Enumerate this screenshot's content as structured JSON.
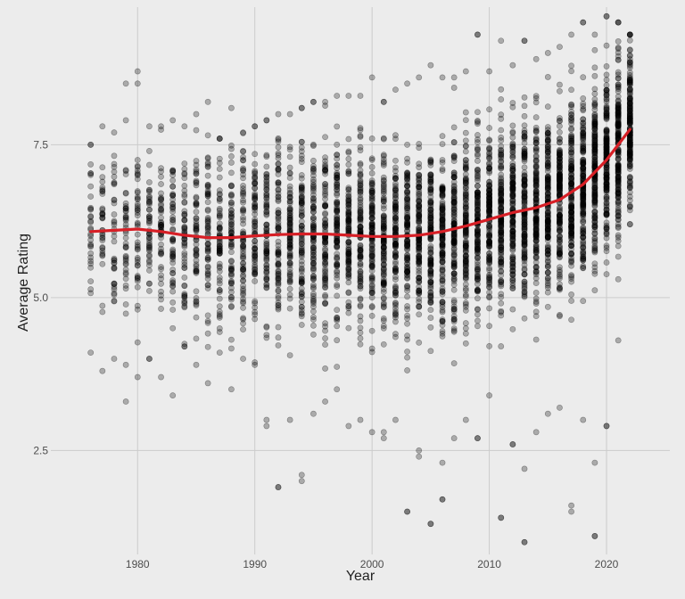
{
  "chart_data": {
    "type": "scatter",
    "xlabel": "Year",
    "ylabel": "Average Rating",
    "xlim": [
      1972.6,
      2025.4
    ],
    "ylim": [
      0.8,
      9.75
    ],
    "x_ticks": [
      {
        "value": 1980,
        "label": "1980"
      },
      {
        "value": 1990,
        "label": "1990"
      },
      {
        "value": 2000,
        "label": "2000"
      },
      {
        "value": 2010,
        "label": "2010"
      },
      {
        "value": 2020,
        "label": "2020"
      }
    ],
    "y_ticks": [
      {
        "value": 2.5,
        "label": "2.5"
      },
      {
        "value": 5.0,
        "label": "5.0"
      },
      {
        "value": 7.5,
        "label": "7.5"
      }
    ],
    "grid": true,
    "point_color": "#000000",
    "point_alpha": 0.28,
    "trend_color": "#d71f26",
    "years": [
      1976,
      1977,
      1978,
      1979,
      1980,
      1981,
      1982,
      1983,
      1984,
      1985,
      1986,
      1987,
      1988,
      1989,
      1990,
      1991,
      1992,
      1993,
      1994,
      1995,
      1996,
      1997,
      1998,
      1999,
      2000,
      2001,
      2002,
      2003,
      2004,
      2005,
      2006,
      2007,
      2008,
      2009,
      2010,
      2011,
      2012,
      2013,
      2014,
      2015,
      2016,
      2017,
      2018,
      2019,
      2020,
      2021,
      2022
    ],
    "ranges_by_year": {
      "low": [
        4.1,
        3.8,
        4.0,
        3.9,
        3.7,
        4.0,
        3.7,
        3.4,
        4.2,
        3.9,
        3.6,
        4.1,
        3.5,
        4.0,
        3.9,
        2.9,
        1.9,
        3.0,
        2.0,
        3.1,
        3.3,
        3.5,
        2.9,
        3.0,
        2.8,
        2.7,
        3.0,
        1.5,
        2.4,
        1.3,
        1.7,
        2.7,
        3.0,
        2.7,
        3.4,
        1.4,
        2.6,
        1.0,
        2.8,
        3.1,
        3.2,
        1.5,
        3.0,
        1.1,
        2.9,
        4.3,
        6.2
      ],
      "high": [
        7.5,
        7.8,
        7.7,
        7.9,
        8.5,
        7.8,
        7.8,
        7.9,
        7.8,
        8.0,
        8.2,
        7.6,
        8.1,
        7.7,
        7.8,
        7.9,
        8.0,
        8.0,
        8.1,
        8.2,
        8.2,
        8.3,
        8.3,
        8.3,
        8.6,
        8.2,
        8.4,
        8.5,
        8.6,
        8.8,
        8.6,
        8.6,
        8.7,
        9.3,
        8.7,
        9.2,
        8.8,
        9.2,
        8.9,
        9.0,
        9.1,
        9.3,
        9.5,
        9.3,
        9.6,
        9.5,
        9.3
      ]
    },
    "outliers": [
      {
        "x": 1979,
        "y": 3.3
      },
      {
        "x": 1979,
        "y": 8.5
      },
      {
        "x": 1980,
        "y": 8.7
      },
      {
        "x": 1992,
        "y": 1.9
      },
      {
        "x": 1994,
        "y": 2.1
      },
      {
        "x": 1991,
        "y": 3.0
      },
      {
        "x": 2003,
        "y": 1.5
      },
      {
        "x": 2005,
        "y": 1.3
      },
      {
        "x": 2006,
        "y": 1.7
      },
      {
        "x": 2006,
        "y": 2.3
      },
      {
        "x": 2004,
        "y": 2.5
      },
      {
        "x": 2011,
        "y": 1.4
      },
      {
        "x": 2013,
        "y": 1.0
      },
      {
        "x": 2013,
        "y": 2.2
      },
      {
        "x": 2017,
        "y": 1.6
      },
      {
        "x": 2019,
        "y": 1.1
      },
      {
        "x": 2019,
        "y": 2.3
      },
      {
        "x": 2020,
        "y": 2.9
      },
      {
        "x": 2001,
        "y": 2.8
      },
      {
        "x": 2009,
        "y": 2.7
      },
      {
        "x": 2012,
        "y": 2.6
      },
      {
        "x": 2018,
        "y": 9.5
      },
      {
        "x": 2020,
        "y": 9.6
      },
      {
        "x": 2009,
        "y": 9.3
      },
      {
        "x": 2013,
        "y": 9.2
      }
    ],
    "trend": {
      "name": "",
      "x": [
        1976,
        1978,
        1980,
        1982,
        1984,
        1986,
        1988,
        1990,
        1992,
        1994,
        1996,
        1998,
        2000,
        2002,
        2004,
        2006,
        2008,
        2010,
        2012,
        2014,
        2016,
        2018,
        2020,
        2022
      ],
      "y": [
        6.08,
        6.1,
        6.12,
        6.08,
        6.02,
        5.98,
        5.98,
        6.01,
        6.03,
        6.04,
        6.04,
        6.02,
        6.0,
        6.0,
        6.02,
        6.08,
        6.17,
        6.28,
        6.39,
        6.47,
        6.6,
        6.85,
        7.25,
        7.75
      ]
    }
  }
}
